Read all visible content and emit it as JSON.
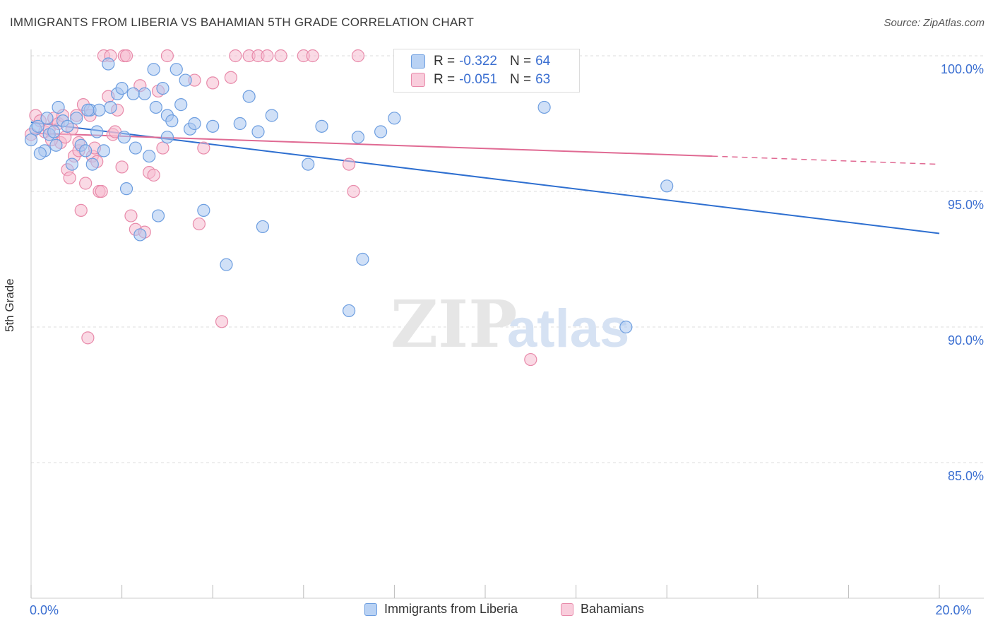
{
  "title": "IMMIGRANTS FROM LIBERIA VS BAHAMIAN 5TH GRADE CORRELATION CHART",
  "source": "Source: ZipAtlas.com",
  "watermark": {
    "zip": "ZIP",
    "atlas": "atlas"
  },
  "colors": {
    "blue_fill": "#a9c6f0",
    "blue_stroke": "#6d9ee0",
    "blue_line": "#2e6fd0",
    "pink_fill": "#f6bccf",
    "pink_stroke": "#e88aaa",
    "pink_line": "#e06a93",
    "axis_text": "#3b6fd1",
    "grid": "#dddddd"
  },
  "stats": [
    {
      "r_label": "R = ",
      "r_value": "-0.322",
      "n_label": "N = ",
      "n_value": "64"
    },
    {
      "r_label": "R = ",
      "r_value": "-0.051",
      "n_label": "N = ",
      "n_value": "63"
    }
  ],
  "legend": [
    "Immigrants from Liberia",
    "Bahamians"
  ],
  "chart_data": {
    "type": "scatter",
    "title": "IMMIGRANTS FROM LIBERIA VS BAHAMIAN 5TH GRADE CORRELATION CHART",
    "xlabel": "",
    "ylabel": "5th Grade",
    "xlim": [
      0,
      20
    ],
    "ylim": [
      80.5,
      100.8
    ],
    "x_ticks": [
      0,
      20
    ],
    "x_tick_labels": [
      "0.0%",
      "20.0%"
    ],
    "y_ticks": [
      100,
      95,
      90,
      85
    ],
    "y_tick_labels": [
      "100.0%",
      "95.0%",
      "90.0%",
      "85.0%"
    ],
    "grid": true,
    "legend_position": "bottom",
    "series": [
      {
        "name": "Immigrants from Liberia",
        "color": "#6d9ee0",
        "trend": {
          "x0": 0,
          "y0": 97.55,
          "x1": 20,
          "y1": 93.45
        },
        "points": [
          [
            0.0,
            96.9
          ],
          [
            0.1,
            97.3
          ],
          [
            0.15,
            97.4
          ],
          [
            0.3,
            96.5
          ],
          [
            0.4,
            97.1
          ],
          [
            0.5,
            97.2
          ],
          [
            0.6,
            98.1
          ],
          [
            0.7,
            97.6
          ],
          [
            0.8,
            97.4
          ],
          [
            0.9,
            96.0
          ],
          [
            1.0,
            97.7
          ],
          [
            1.1,
            96.7
          ],
          [
            1.2,
            96.5
          ],
          [
            1.3,
            98.0
          ],
          [
            1.35,
            96.0
          ],
          [
            1.45,
            97.2
          ],
          [
            1.5,
            98.0
          ],
          [
            1.6,
            96.5
          ],
          [
            1.7,
            99.7
          ],
          [
            1.75,
            98.1
          ],
          [
            1.9,
            98.6
          ],
          [
            2.0,
            98.8
          ],
          [
            2.05,
            97.0
          ],
          [
            2.1,
            95.1
          ],
          [
            2.3,
            96.6
          ],
          [
            2.4,
            93.4
          ],
          [
            2.5,
            98.6
          ],
          [
            2.6,
            96.3
          ],
          [
            2.7,
            99.5
          ],
          [
            2.75,
            98.1
          ],
          [
            2.8,
            94.1
          ],
          [
            2.9,
            98.8
          ],
          [
            3.0,
            97.8
          ],
          [
            3.1,
            97.6
          ],
          [
            3.2,
            99.5
          ],
          [
            3.3,
            98.2
          ],
          [
            3.4,
            99.1
          ],
          [
            3.5,
            97.3
          ],
          [
            3.6,
            97.5
          ],
          [
            3.8,
            94.3
          ],
          [
            4.0,
            97.4
          ],
          [
            4.3,
            92.3
          ],
          [
            4.6,
            97.5
          ],
          [
            4.8,
            98.5
          ],
          [
            5.0,
            97.2
          ],
          [
            5.1,
            93.7
          ],
          [
            5.3,
            97.8
          ],
          [
            6.1,
            96.0
          ],
          [
            6.4,
            97.4
          ],
          [
            7.0,
            90.6
          ],
          [
            7.2,
            97.0
          ],
          [
            7.3,
            92.5
          ],
          [
            7.7,
            97.2
          ],
          [
            8.0,
            97.7
          ],
          [
            11.3,
            98.1
          ],
          [
            14.0,
            95.2
          ],
          [
            13.1,
            90.0
          ],
          [
            9.5,
            100.0
          ],
          [
            0.2,
            96.4
          ],
          [
            2.25,
            98.6
          ],
          [
            1.25,
            98.0
          ],
          [
            0.55,
            96.7
          ],
          [
            3.0,
            97.0
          ],
          [
            0.35,
            97.7
          ]
        ]
      },
      {
        "name": "Bahamians",
        "color": "#e88aaa",
        "trend": {
          "x0": 0,
          "y0": 97.15,
          "x1": 15.0,
          "y1": 96.3,
          "x2": 20,
          "y2": 96.0
        },
        "points": [
          [
            0.0,
            97.1
          ],
          [
            0.1,
            97.8
          ],
          [
            0.2,
            97.6
          ],
          [
            0.3,
            97.2
          ],
          [
            0.4,
            97.3
          ],
          [
            0.5,
            97.7
          ],
          [
            0.6,
            97.5
          ],
          [
            0.65,
            96.8
          ],
          [
            0.7,
            97.8
          ],
          [
            0.8,
            95.8
          ],
          [
            0.85,
            95.5
          ],
          [
            0.9,
            97.3
          ],
          [
            0.95,
            96.3
          ],
          [
            1.0,
            97.8
          ],
          [
            1.05,
            96.5
          ],
          [
            1.1,
            94.3
          ],
          [
            1.15,
            98.2
          ],
          [
            1.2,
            95.3
          ],
          [
            1.25,
            89.6
          ],
          [
            1.3,
            97.8
          ],
          [
            1.35,
            96.3
          ],
          [
            1.4,
            96.6
          ],
          [
            1.45,
            96.1
          ],
          [
            1.5,
            95.0
          ],
          [
            1.55,
            95.0
          ],
          [
            1.6,
            100.0
          ],
          [
            1.7,
            98.5
          ],
          [
            1.75,
            100.0
          ],
          [
            1.8,
            97.1
          ],
          [
            1.9,
            98.0
          ],
          [
            2.0,
            95.9
          ],
          [
            2.05,
            100.0
          ],
          [
            2.1,
            100.0
          ],
          [
            2.2,
            94.1
          ],
          [
            2.3,
            93.6
          ],
          [
            2.4,
            98.9
          ],
          [
            2.5,
            93.5
          ],
          [
            2.6,
            95.7
          ],
          [
            2.7,
            95.6
          ],
          [
            2.8,
            98.7
          ],
          [
            2.9,
            96.6
          ],
          [
            3.0,
            100.0
          ],
          [
            3.6,
            99.1
          ],
          [
            3.8,
            96.6
          ],
          [
            4.0,
            99.0
          ],
          [
            4.2,
            90.2
          ],
          [
            4.4,
            99.2
          ],
          [
            4.5,
            100.0
          ],
          [
            4.8,
            100.0
          ],
          [
            5.0,
            100.0
          ],
          [
            5.2,
            100.0
          ],
          [
            5.5,
            100.0
          ],
          [
            6.0,
            100.0
          ],
          [
            6.2,
            100.0
          ],
          [
            7.0,
            96.0
          ],
          [
            7.1,
            95.0
          ],
          [
            7.2,
            100.0
          ],
          [
            11.0,
            88.8
          ],
          [
            0.45,
            96.9
          ],
          [
            1.85,
            97.2
          ],
          [
            3.7,
            93.8
          ],
          [
            0.75,
            97.0
          ],
          [
            1.05,
            96.8
          ]
        ]
      }
    ]
  }
}
